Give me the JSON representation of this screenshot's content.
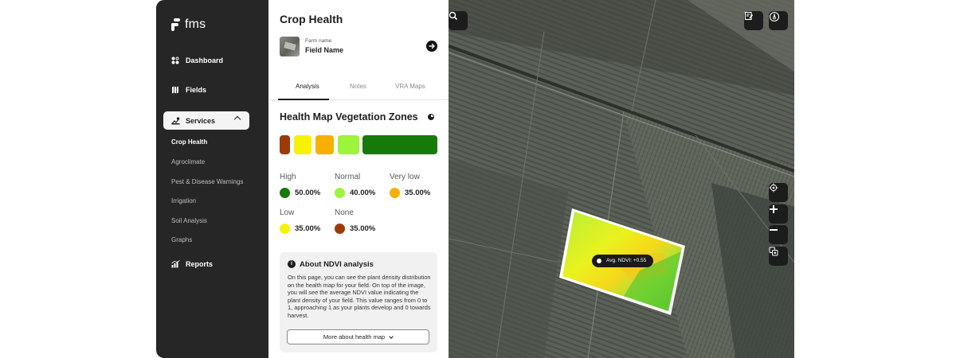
{
  "app": {
    "logo_text": "fms"
  },
  "sidebar": {
    "nav": [
      {
        "label": "Dashboard",
        "icon": "dashboard-icon"
      },
      {
        "label": "Fields",
        "icon": "fields-icon"
      },
      {
        "label": "Services",
        "icon": "services-icon",
        "expanded": true
      },
      {
        "label": "Reports",
        "icon": "reports-icon"
      }
    ],
    "services_sub": [
      "Crop Health",
      "Agroclimate",
      "Pest & Disease Warnings",
      "Irrigation",
      "Soil Analysis",
      "Graphs"
    ],
    "active_sub": "Crop Health"
  },
  "panel": {
    "title": "Crop Health",
    "farm_label": "Farm name",
    "field_name": "Field Name",
    "tabs": [
      "Analysis",
      "Notes",
      "VRA Maps"
    ],
    "active_tab": "Analysis",
    "section_title": "Health Map Vegetation Zones",
    "zone_colors": [
      "#9c3a08",
      "#f7f200",
      "#f7b000",
      "#9cf53a",
      "#167a0a"
    ],
    "legend": [
      {
        "label": "High",
        "value": "50.00%",
        "color": "#167a0a"
      },
      {
        "label": "Normal",
        "value": "40.00%",
        "color": "#9cf53a"
      },
      {
        "label": "Very low",
        "value": "35.00%",
        "color": "#f7b000"
      },
      {
        "label": "Low",
        "value": "35.00%",
        "color": "#f7f200"
      },
      {
        "label": "None",
        "value": "35.00%",
        "color": "#9c3a08"
      }
    ],
    "about": {
      "title": "About NDVI analysis",
      "text": "On this page, you can see the plant density distribution on the health map for your field. On top of the image, you will see the average NDVI value indicating the plant density of your field. This value ranges from 0 to 1, approaching 1 as your plants develop and 0 towards harvest.",
      "button_label": "More about health map"
    }
  },
  "map": {
    "ndvi_label": "Avg. NDVI: +0.55",
    "controls": [
      "search-icon",
      "note-icon",
      "compass-icon",
      "locate-icon",
      "zoom-in-icon",
      "zoom-out-icon",
      "layers-icon"
    ]
  }
}
